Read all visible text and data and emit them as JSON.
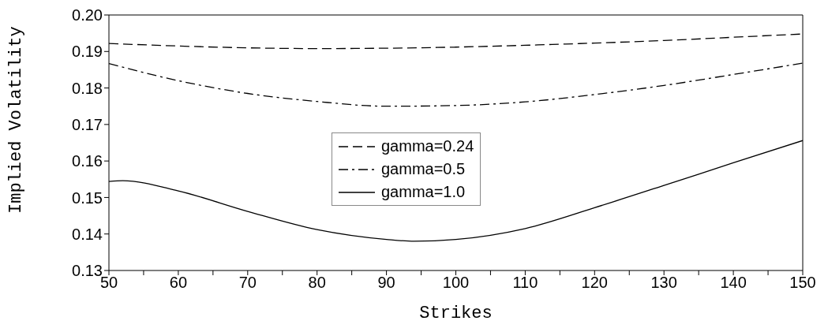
{
  "chart_data": {
    "type": "line",
    "xlabel": "Strikes",
    "ylabel": "Implied Volatility",
    "xlim": [
      50,
      150
    ],
    "ylim": [
      0.13,
      0.2
    ],
    "xticks": [
      50,
      {
        "value": 55,
        "label": null
      },
      60,
      {
        "value": 65,
        "label": null
      },
      70,
      {
        "value": 75,
        "label": null
      },
      80,
      {
        "value": 85,
        "label": null
      },
      90,
      {
        "value": 95,
        "label": null
      },
      100,
      {
        "value": 105,
        "label": null
      },
      110,
      {
        "value": 115,
        "label": null
      },
      120,
      {
        "value": 125,
        "label": null
      },
      130,
      {
        "value": 135,
        "label": null
      },
      140,
      {
        "value": 145,
        "label": null
      },
      150
    ],
    "yticks": [
      {
        "value": 0.13,
        "label": "0.13"
      },
      0.14,
      0.15,
      0.16,
      0.17,
      0.18,
      0.19,
      {
        "value": 0.2,
        "label": "0.20"
      }
    ],
    "legend": "center",
    "marker": "none",
    "series": [
      {
        "name": "gamma=0.24",
        "color": "#000000",
        "line_style": "dashed",
        "x": [
          50,
          60,
          70,
          80,
          90,
          100,
          110,
          120,
          130,
          140,
          150
        ],
        "values": [
          0.1922,
          0.1915,
          0.191,
          0.1908,
          0.1909,
          0.1912,
          0.1917,
          0.1923,
          0.193,
          0.1939,
          0.1948
        ]
      },
      {
        "name": "gamma=0.5",
        "color": "#000000",
        "line_style": "dashdot",
        "x": [
          50,
          60,
          70,
          80,
          90,
          100,
          110,
          120,
          130,
          140,
          150
        ],
        "values": [
          0.1867,
          0.182,
          0.1785,
          0.1763,
          0.175,
          0.1752,
          0.1762,
          0.1782,
          0.1807,
          0.1837,
          0.1868
        ]
      },
      {
        "name": "gamma=1.0",
        "color": "#000000",
        "line_style": "solid",
        "x": [
          50,
          52,
          60,
          70,
          80,
          90,
          94,
          100,
          110,
          120,
          130,
          140,
          150
        ],
        "values": [
          0.1544,
          0.1546,
          0.1518,
          0.1462,
          0.1412,
          0.1385,
          0.138,
          0.1385,
          0.1415,
          0.1472,
          0.1533,
          0.1595,
          0.1656
        ]
      }
    ]
  }
}
